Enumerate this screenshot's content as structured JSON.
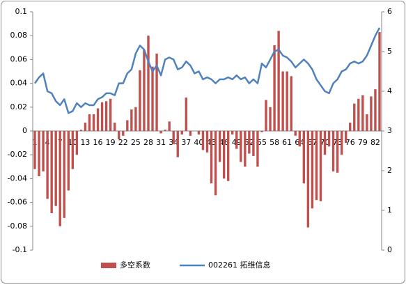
{
  "chart_data": {
    "type": "combo",
    "categories": [
      "1",
      null,
      null,
      "4",
      null,
      null,
      "7",
      null,
      null,
      "10",
      null,
      null,
      "13",
      null,
      null,
      "16",
      null,
      null,
      "19",
      null,
      null,
      "22",
      null,
      null,
      "25",
      null,
      null,
      "28",
      null,
      null,
      "31",
      null,
      null,
      "34",
      null,
      null,
      "37",
      null,
      null,
      "40",
      null,
      null,
      "43",
      null,
      null,
      "46",
      null,
      null,
      "49",
      null,
      null,
      "52",
      null,
      null,
      "55",
      null,
      null,
      "58",
      null,
      null,
      "61",
      null,
      null,
      "64",
      null,
      null,
      "67",
      null,
      null,
      "70",
      null,
      null,
      "73",
      null,
      null,
      "76",
      null,
      null,
      "79",
      null,
      null,
      "82",
      null
    ],
    "series": [
      {
        "name": "多空系数",
        "type": "bar",
        "color": "#c0504d",
        "values": [
          -0.032,
          -0.038,
          -0.034,
          -0.057,
          -0.069,
          -0.063,
          -0.08,
          -0.073,
          -0.05,
          -0.032,
          -0.02,
          0.001,
          0.007,
          0.014,
          0.014,
          0.019,
          0.024,
          0.025,
          0.027,
          0.007,
          -0.007,
          -0.004,
          0.009,
          0.018,
          0.02,
          0.051,
          0.068,
          0.08,
          0.054,
          0.065,
          -0.002,
          0.001,
          0.008,
          -0.011,
          -0.022,
          -0.003,
          0.028,
          -0.004,
          0.0,
          -0.003,
          -0.016,
          -0.018,
          -0.044,
          -0.054,
          -0.026,
          -0.04,
          -0.042,
          -0.003,
          -0.015,
          -0.026,
          -0.03,
          -0.019,
          -0.021,
          -0.03,
          -0.001,
          0.026,
          0.02,
          0.072,
          0.084,
          0.05,
          0.05,
          0.046,
          -0.004,
          -0.013,
          -0.044,
          -0.081,
          -0.065,
          -0.058,
          -0.059,
          -0.02,
          -0.013,
          -0.034,
          -0.035,
          -0.02,
          -0.01,
          0.007,
          0.023,
          0.027,
          0.03,
          0.014,
          0.029,
          0.035,
          0.083
        ]
      },
      {
        "name": "002261 拓维信息",
        "type": "line",
        "axis": "y2",
        "color": "#4f81bd",
        "values": [
          4.2,
          4.35,
          4.45,
          4.0,
          3.95,
          3.75,
          3.65,
          3.8,
          3.45,
          3.5,
          3.7,
          3.6,
          3.7,
          3.65,
          3.65,
          3.8,
          3.85,
          3.95,
          3.95,
          3.9,
          4.2,
          4.2,
          4.45,
          4.55,
          4.95,
          5.15,
          5.05,
          4.75,
          4.5,
          4.65,
          4.4,
          4.8,
          4.85,
          4.8,
          4.55,
          4.6,
          4.75,
          4.65,
          4.45,
          4.5,
          4.3,
          4.35,
          4.3,
          4.2,
          4.3,
          4.3,
          4.35,
          4.3,
          4.4,
          4.3,
          4.35,
          4.2,
          4.3,
          4.2,
          4.7,
          4.6,
          4.8,
          5.0,
          5.05,
          4.9,
          4.85,
          4.75,
          4.6,
          4.7,
          4.8,
          4.7,
          4.55,
          4.3,
          4.15,
          4.0,
          3.95,
          4.2,
          4.3,
          4.5,
          4.55,
          4.7,
          4.75,
          4.7,
          4.75,
          4.9,
          5.15,
          5.4,
          5.6
        ]
      }
    ],
    "ylim": [
      -0.1,
      0.1
    ],
    "yticks": [
      -0.1,
      -0.08,
      -0.06,
      -0.04,
      -0.02,
      0,
      0.02,
      0.04,
      0.06,
      0.08,
      0.1
    ],
    "y2lim": [
      0,
      6
    ],
    "y2ticks": [
      0,
      1,
      2,
      3,
      4,
      5,
      6
    ],
    "legend": "bottom"
  }
}
